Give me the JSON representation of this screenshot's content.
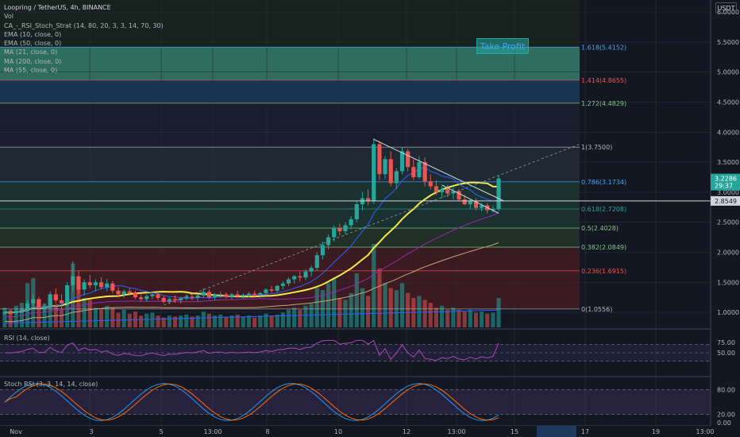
{
  "legend": {
    "title": "Loopring / TetherUS, 4h, BINANCE",
    "items": [
      "Vol",
      "CA_-_RSI_Stoch_Strat (14, 80, 20, 3, 3, 14, 70, 30)",
      "EMA (10, close, 0)",
      "EMA (50, close, 0)",
      "MA (21, close, 0)",
      "MA (200, close, 0)",
      "MA (55, close, 0)"
    ]
  },
  "currency_label": "USDT",
  "annotation": "Take Profit",
  "rsi_label": "RSI (14, close)",
  "stoch_label": "Stoch RSI (3, 3, 14, 14, close)",
  "colors": {
    "background": "#131722",
    "up": "#26a69a",
    "down": "#ef5350",
    "ma_yellow": "#f5e84a",
    "trendline": "#d1d4dc",
    "rsi": "#ab47bc",
    "stoch_k": "#2196f3",
    "stoch_d": "#ff6d00"
  },
  "chart_data": {
    "type": "candlestick",
    "price_axis": {
      "min": 0.75,
      "max": 6.2,
      "ticks": [
        "6.0000",
        "5.5000",
        "5.0000",
        "4.5000",
        "4.0000",
        "3.5000",
        "3.0000",
        "2.5000",
        "2.0000",
        "1.5000",
        "1.0000"
      ]
    },
    "current_price": "3.2286",
    "countdown": "29:37",
    "level_price": "2.8549",
    "time_axis": [
      "Nov",
      "3",
      "5",
      "13:00",
      "8",
      "10",
      "12",
      "13:00",
      "15",
      "17",
      "19",
      "13:00"
    ],
    "fib_levels": [
      {
        "label": "1.618(5.4152)",
        "price": 5.4152,
        "color": "#42a5f5"
      },
      {
        "label": "1.414(4.8655)",
        "price": 4.8655,
        "color": "#ef5350"
      },
      {
        "label": "1.272(4.4829)",
        "price": 4.4829,
        "color": "#81c784"
      },
      {
        "label": "1(3.7500)",
        "price": 3.75,
        "color": "#b2b5be"
      },
      {
        "label": "0.786(3.1734)",
        "price": 3.1734,
        "color": "#42a5f5"
      },
      {
        "label": "0.618(2.7208)",
        "price": 2.7208,
        "color": "#26a69a"
      },
      {
        "label": "0.5(2.4028)",
        "price": 2.4028,
        "color": "#81c784"
      },
      {
        "label": "0.382(2.0849)",
        "price": 2.0849,
        "color": "#81c784"
      },
      {
        "label": "0.236(1.6915)",
        "price": 1.6915,
        "color": "#ef5350"
      },
      {
        "label": "0(1.0556)",
        "price": 1.0556,
        "color": "#b2b5be"
      }
    ],
    "candles_ohlc": [
      [
        0.98,
        1.02,
        0.95,
        1.0
      ],
      [
        1.0,
        1.03,
        0.97,
        0.99
      ],
      [
        0.99,
        1.05,
        0.96,
        1.02
      ],
      [
        1.02,
        1.08,
        0.99,
        1.05
      ],
      [
        1.05,
        1.2,
        1.0,
        1.15
      ],
      [
        1.15,
        1.3,
        1.1,
        1.22
      ],
      [
        1.22,
        1.26,
        1.05,
        1.08
      ],
      [
        1.08,
        1.15,
        1.0,
        1.1
      ],
      [
        1.1,
        1.35,
        1.05,
        1.3
      ],
      [
        1.3,
        1.4,
        1.15,
        1.2
      ],
      [
        1.2,
        1.3,
        1.05,
        1.15
      ],
      [
        1.15,
        1.5,
        1.1,
        1.45
      ],
      [
        1.45,
        1.85,
        1.35,
        1.6
      ],
      [
        1.6,
        1.7,
        1.3,
        1.38
      ],
      [
        1.38,
        1.55,
        1.28,
        1.5
      ],
      [
        1.5,
        1.62,
        1.4,
        1.45
      ],
      [
        1.45,
        1.55,
        1.35,
        1.5
      ],
      [
        1.5,
        1.58,
        1.38,
        1.42
      ],
      [
        1.42,
        1.55,
        1.35,
        1.48
      ],
      [
        1.48,
        1.52,
        1.32,
        1.36
      ],
      [
        1.36,
        1.42,
        1.25,
        1.3
      ],
      [
        1.3,
        1.38,
        1.24,
        1.35
      ],
      [
        1.35,
        1.4,
        1.28,
        1.32
      ],
      [
        1.32,
        1.36,
        1.22,
        1.25
      ],
      [
        1.25,
        1.3,
        1.18,
        1.22
      ],
      [
        1.22,
        1.3,
        1.18,
        1.27
      ],
      [
        1.27,
        1.34,
        1.22,
        1.3
      ],
      [
        1.3,
        1.34,
        1.2,
        1.24
      ],
      [
        1.24,
        1.28,
        1.15,
        1.18
      ],
      [
        1.18,
        1.25,
        1.14,
        1.22
      ],
      [
        1.22,
        1.28,
        1.16,
        1.2
      ],
      [
        1.2,
        1.26,
        1.15,
        1.23
      ],
      [
        1.23,
        1.3,
        1.2,
        1.26
      ],
      [
        1.26,
        1.32,
        1.2,
        1.24
      ],
      [
        1.24,
        1.3,
        1.18,
        1.28
      ],
      [
        1.28,
        1.4,
        1.24,
        1.34
      ],
      [
        1.34,
        1.38,
        1.22,
        1.25
      ],
      [
        1.25,
        1.32,
        1.2,
        1.29
      ],
      [
        1.29,
        1.34,
        1.24,
        1.3
      ],
      [
        1.3,
        1.33,
        1.23,
        1.26
      ],
      [
        1.26,
        1.32,
        1.22,
        1.3
      ],
      [
        1.3,
        1.36,
        1.24,
        1.27
      ],
      [
        1.27,
        1.32,
        1.22,
        1.29
      ],
      [
        1.29,
        1.34,
        1.25,
        1.31
      ],
      [
        1.31,
        1.36,
        1.26,
        1.29
      ],
      [
        1.29,
        1.34,
        1.24,
        1.32
      ],
      [
        1.32,
        1.4,
        1.28,
        1.38
      ],
      [
        1.38,
        1.44,
        1.32,
        1.36
      ],
      [
        1.36,
        1.46,
        1.33,
        1.44
      ],
      [
        1.44,
        1.52,
        1.38,
        1.48
      ],
      [
        1.48,
        1.58,
        1.44,
        1.55
      ],
      [
        1.55,
        1.62,
        1.48,
        1.6
      ],
      [
        1.6,
        1.68,
        1.52,
        1.58
      ],
      [
        1.58,
        1.72,
        1.54,
        1.68
      ],
      [
        1.68,
        1.78,
        1.6,
        1.74
      ],
      [
        1.74,
        2.0,
        1.7,
        1.95
      ],
      [
        1.95,
        2.18,
        1.88,
        2.12
      ],
      [
        2.12,
        2.3,
        2.05,
        2.25
      ],
      [
        2.25,
        2.45,
        2.18,
        2.4
      ],
      [
        2.4,
        2.48,
        2.28,
        2.35
      ],
      [
        2.35,
        2.5,
        2.3,
        2.45
      ],
      [
        2.45,
        2.6,
        2.38,
        2.55
      ],
      [
        2.55,
        2.85,
        2.5,
        2.8
      ],
      [
        2.8,
        3.0,
        2.7,
        2.9
      ],
      [
        2.9,
        3.05,
        2.78,
        2.85
      ],
      [
        2.85,
        3.9,
        2.8,
        3.8
      ],
      [
        3.8,
        3.85,
        3.2,
        3.3
      ],
      [
        3.3,
        3.6,
        3.22,
        3.55
      ],
      [
        3.55,
        3.68,
        3.1,
        3.15
      ],
      [
        3.15,
        3.4,
        3.05,
        3.35
      ],
      [
        3.35,
        3.75,
        3.3,
        3.68
      ],
      [
        3.68,
        3.72,
        3.35,
        3.42
      ],
      [
        3.42,
        3.55,
        3.2,
        3.25
      ],
      [
        3.25,
        3.6,
        3.22,
        3.5
      ],
      [
        3.5,
        3.58,
        3.1,
        3.18
      ],
      [
        3.18,
        3.3,
        3.05,
        3.1
      ],
      [
        3.1,
        3.2,
        2.95,
        3.0
      ],
      [
        3.0,
        3.1,
        2.9,
        3.05
      ],
      [
        3.05,
        3.12,
        2.92,
        2.98
      ],
      [
        2.98,
        3.08,
        2.88,
        3.02
      ],
      [
        3.02,
        3.05,
        2.85,
        2.88
      ],
      [
        2.88,
        2.96,
        2.78,
        2.8
      ],
      [
        2.8,
        2.88,
        2.72,
        2.85
      ],
      [
        2.85,
        2.9,
        2.7,
        2.74
      ],
      [
        2.74,
        2.82,
        2.68,
        2.78
      ],
      [
        2.78,
        2.82,
        2.65,
        2.7
      ],
      [
        2.7,
        2.78,
        2.66,
        2.72
      ],
      [
        2.72,
        3.28,
        2.68,
        3.2286
      ]
    ],
    "volume": [
      20,
      18,
      22,
      25,
      45,
      50,
      28,
      24,
      30,
      22,
      18,
      35,
      65,
      40,
      30,
      28,
      20,
      18,
      22,
      20,
      15,
      18,
      14,
      16,
      12,
      14,
      15,
      12,
      10,
      12,
      11,
      12,
      13,
      11,
      12,
      16,
      14,
      12,
      13,
      11,
      12,
      13,
      11,
      12,
      10,
      12,
      14,
      12,
      13,
      15,
      18,
      20,
      18,
      22,
      24,
      40,
      38,
      45,
      50,
      30,
      28,
      35,
      55,
      40,
      32,
      85,
      60,
      45,
      40,
      38,
      45,
      35,
      30,
      32,
      28,
      25,
      20,
      22,
      18,
      20,
      18,
      16,
      18,
      15,
      16,
      14,
      15,
      30
    ]
  }
}
